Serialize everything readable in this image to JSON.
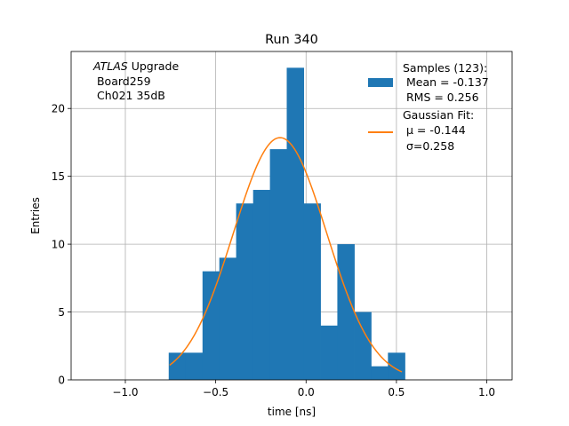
{
  "chart_data": {
    "type": "bar",
    "title": "Run 340",
    "xlabel": "time [ns]",
    "ylabel": "Entries",
    "xlim": [
      -1.3,
      1.14
    ],
    "ylim": [
      0,
      24.2
    ],
    "grid": true,
    "xticks": [
      -1.0,
      -0.5,
      0.0,
      0.5,
      1.0
    ],
    "xtick_labels": [
      "−1.0",
      "−0.5",
      "0.0",
      "0.5",
      "1.0"
    ],
    "yticks": [
      0,
      5,
      10,
      15,
      20
    ],
    "ytick_labels": [
      "0",
      "5",
      "10",
      "15",
      "20"
    ],
    "histogram": {
      "bin_edges": [
        -0.76,
        -0.667,
        -0.573,
        -0.48,
        -0.387,
        -0.293,
        -0.2,
        -0.107,
        -0.013,
        0.08,
        0.173,
        0.267,
        0.36,
        0.453,
        0.547
      ],
      "counts": [
        2,
        2,
        8,
        9,
        13,
        14,
        17,
        23,
        13,
        4,
        10,
        5,
        1,
        2
      ],
      "color": "#1f77b4"
    },
    "fit": {
      "x_min": -0.755,
      "x_max": 0.53,
      "mu": -0.144,
      "sigma": 0.258,
      "amplitude": 17.85,
      "color": "#ff7f0e"
    },
    "annotation": {
      "italic": "ATLAS",
      "rest": " Upgrade",
      "line2": " Board259",
      "line3": " Ch021 35dB"
    },
    "legend": {
      "placement": "top-right",
      "entries": [
        {
          "type": "patch",
          "color": "#1f77b4",
          "lines": [
            "Samples (123):",
            " Mean = -0.137",
            " RMS = 0.256"
          ]
        },
        {
          "type": "line",
          "color": "#ff7f0e",
          "lines": [
            "Gaussian Fit:",
            " μ = -0.144",
            " σ=0.258"
          ]
        }
      ]
    }
  }
}
